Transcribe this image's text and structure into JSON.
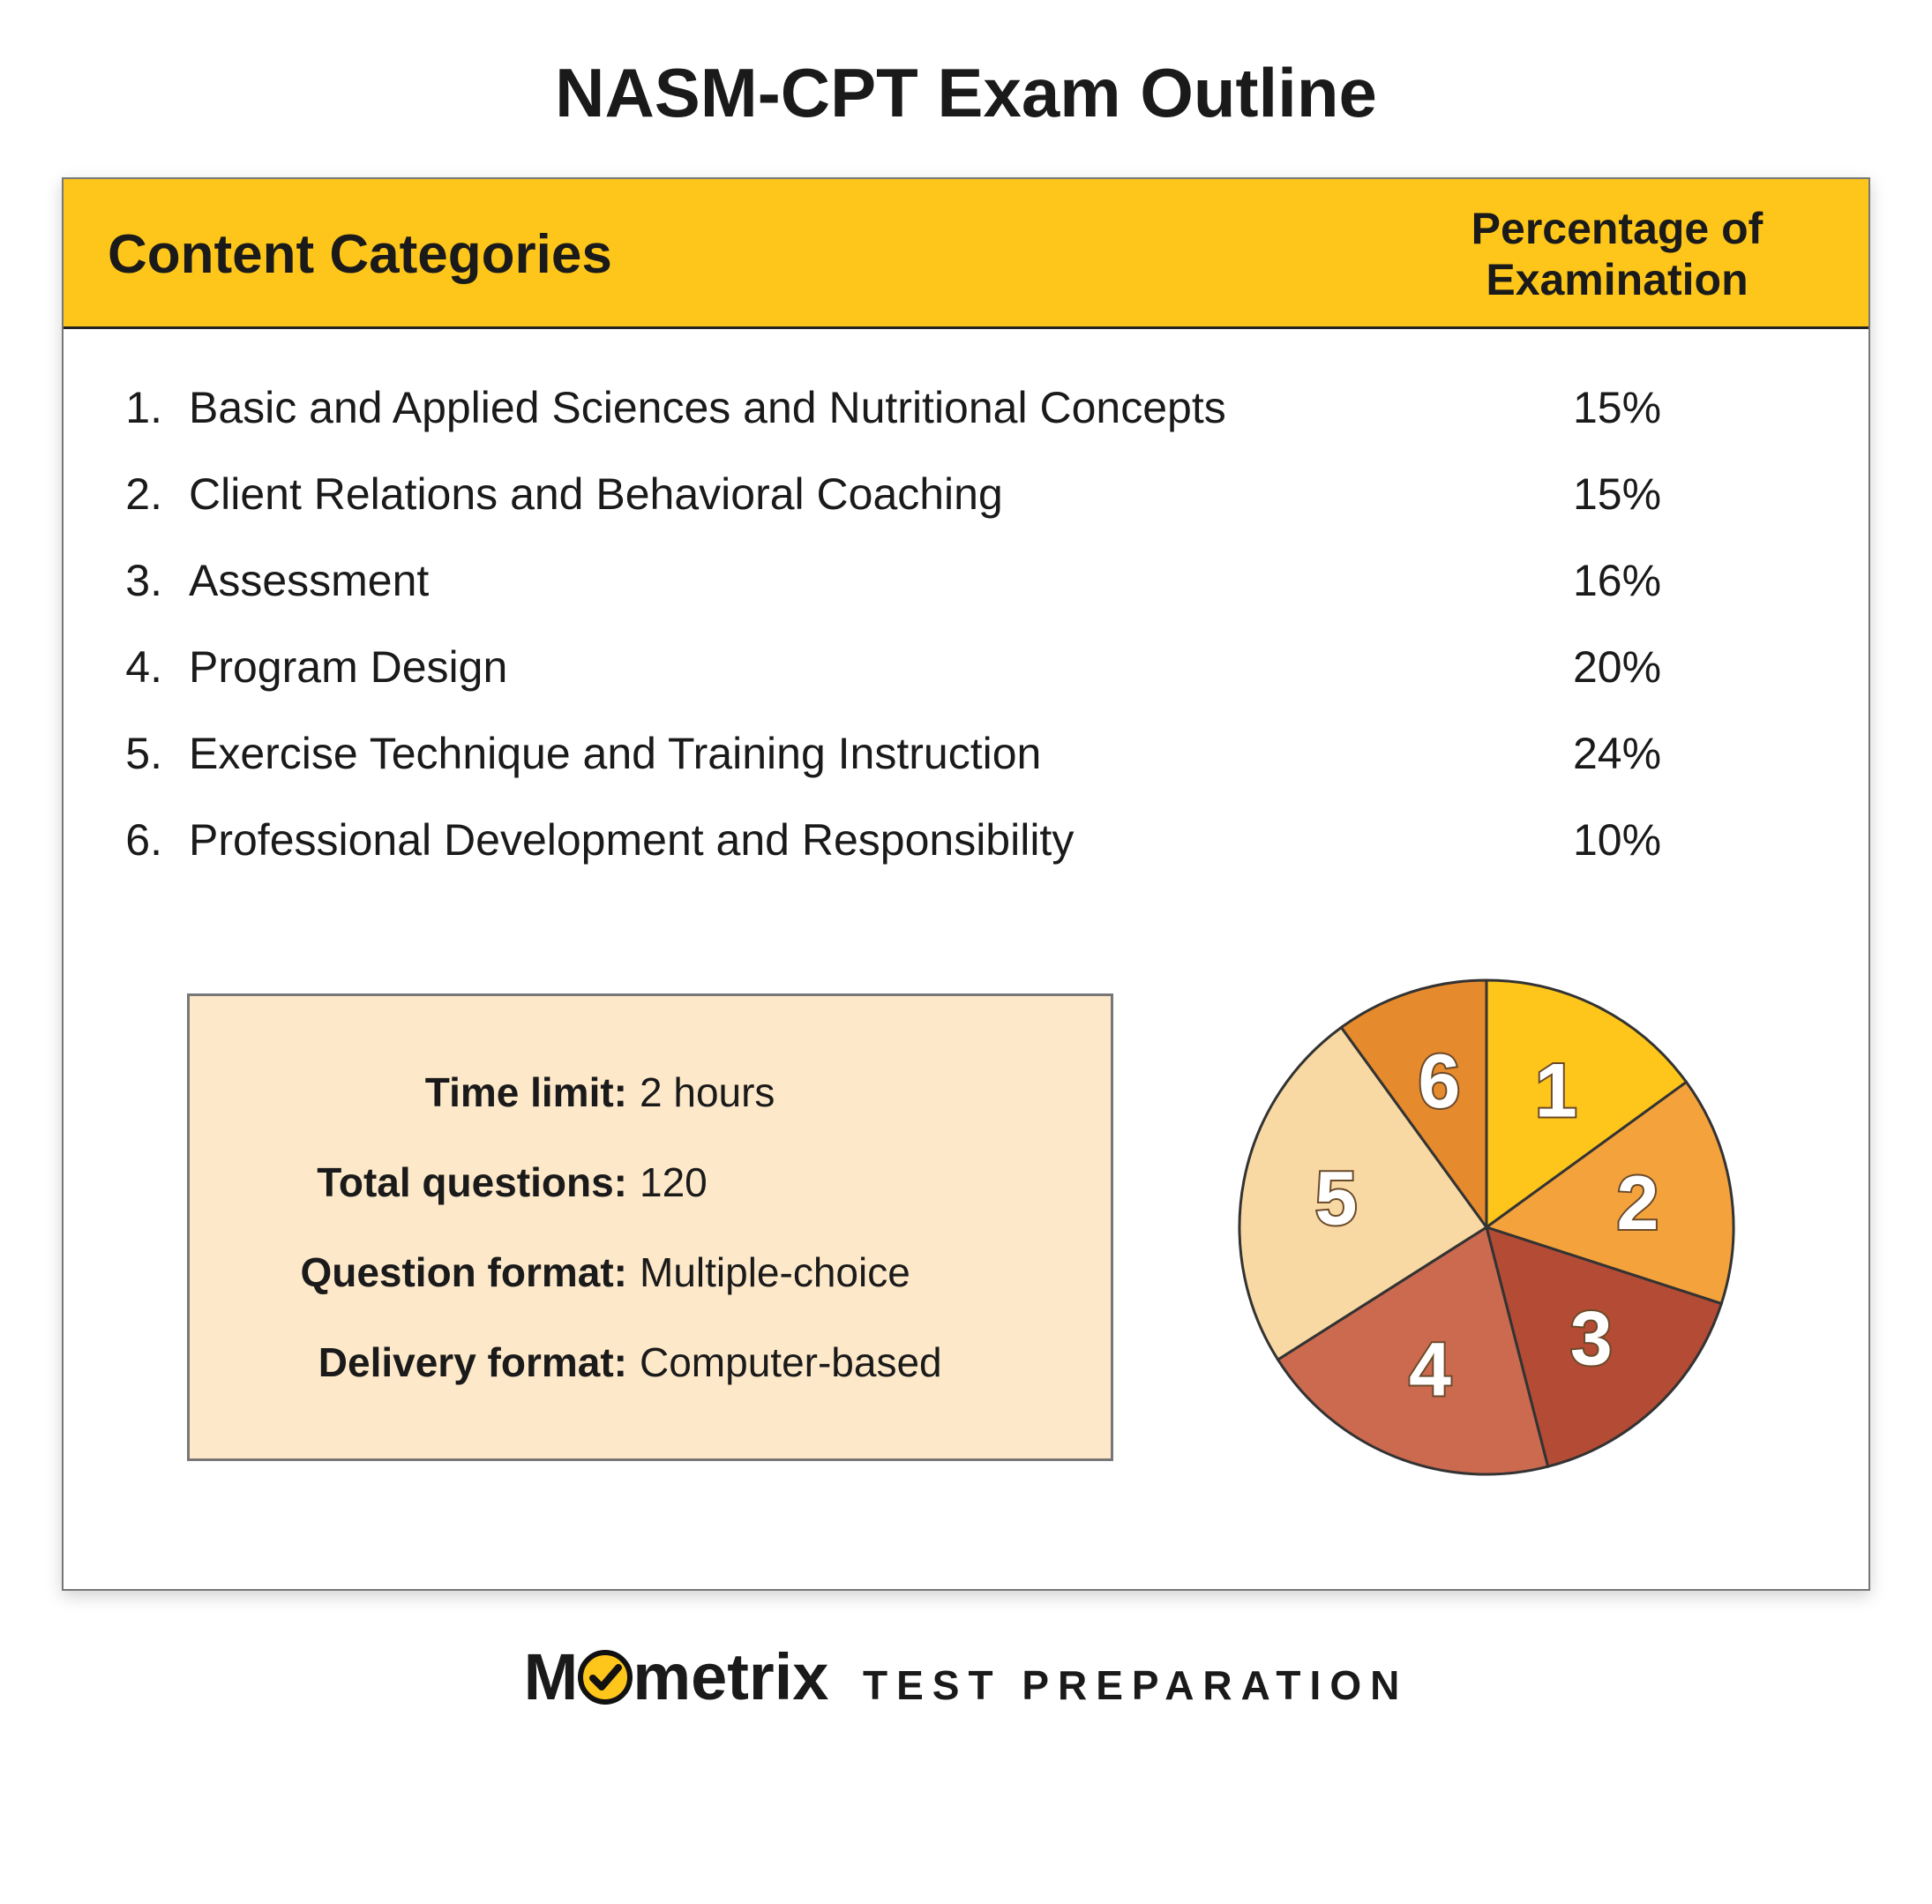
{
  "title": "NASM-CPT Exam Outline",
  "table": {
    "header_left": "Content Categories",
    "header_right": "Percentage of Examination",
    "header_bg": "#fec61a",
    "header_border": "#1a1a1a",
    "rows": [
      {
        "num": "1.",
        "label": "Basic and Applied Sciences and Nutritional Concepts",
        "pct": "15%"
      },
      {
        "num": "2.",
        "label": "Client Relations and Behavioral Coaching",
        "pct": "15%"
      },
      {
        "num": "3.",
        "label": "Assessment",
        "pct": "16%"
      },
      {
        "num": "4.",
        "label": "Program Design",
        "pct": "20%"
      },
      {
        "num": "5.",
        "label": "Exercise Technique and Training Instruction",
        "pct": "24%"
      },
      {
        "num": "6.",
        "label": "Professional Development and Responsibility",
        "pct": "10%"
      }
    ]
  },
  "details": {
    "box_bg": "#fde8c9",
    "box_border": "#777777",
    "items": [
      {
        "label": "Time limit:",
        "value": "2 hours"
      },
      {
        "label": "Total questions:",
        "value": "120"
      },
      {
        "label": "Question format:",
        "value": "Multiple-choice"
      },
      {
        "label": "Delivery format:",
        "value": "Computer-based"
      }
    ]
  },
  "pie": {
    "type": "pie",
    "radius": 280,
    "stroke": "#333333",
    "stroke_width": 3,
    "label_fill": "#ffffff",
    "label_stroke": "#6b4a2a",
    "label_stroke_width": 4,
    "label_fontsize": 86,
    "label_fontweight": 700,
    "slices": [
      {
        "num": "1",
        "value": 15,
        "color": "#fec61a"
      },
      {
        "num": "2",
        "value": 15,
        "color": "#f4a23c"
      },
      {
        "num": "3",
        "value": 16,
        "color": "#b44b34"
      },
      {
        "num": "4",
        "value": 20,
        "color": "#cc6a4f"
      },
      {
        "num": "5",
        "value": 24,
        "color": "#f8d9a3"
      },
      {
        "num": "6",
        "value": 10,
        "color": "#e68a2e"
      }
    ]
  },
  "logo": {
    "brand_pre": "M",
    "brand_post": "metrix",
    "sub": "TEST  PREPARATION",
    "check_bg": "#fec61a",
    "check_ring": "#111111",
    "check_mark": "#111111"
  }
}
